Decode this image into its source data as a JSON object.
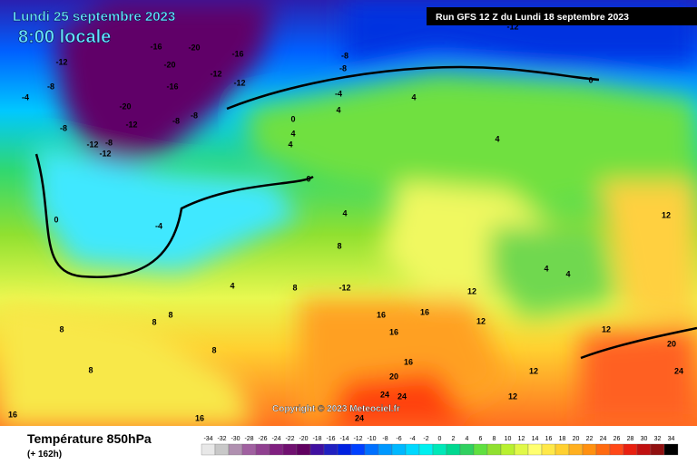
{
  "header": {
    "date": "Lundi 25 septembre 2023",
    "time": "8:00 locale",
    "run": "Run GFS 12 Z du Lundi 18 septembre 2023",
    "copyright": "Copyright © 2023 Meteociel.fr"
  },
  "legend": {
    "title": "Température 850hPa",
    "lead": "(+ 162h)",
    "ticks": [
      -34,
      -32,
      -30,
      -28,
      -26,
      -24,
      -22,
      -20,
      -18,
      -16,
      -14,
      -12,
      -10,
      -8,
      -6,
      -4,
      -2,
      0,
      2,
      4,
      6,
      8,
      10,
      12,
      14,
      16,
      18,
      20,
      22,
      24,
      26,
      28,
      30,
      32,
      34
    ],
    "colors": [
      "#e8e8e8",
      "#c8c8c8",
      "#b090b0",
      "#a060a0",
      "#904090",
      "#802080",
      "#701070",
      "#600060",
      "#4010a0",
      "#2020c0",
      "#0020e0",
      "#0040ff",
      "#0070ff",
      "#0098ff",
      "#00b8ff",
      "#00d8ff",
      "#00f0f0",
      "#00e8b8",
      "#00d890",
      "#30d060",
      "#60e040",
      "#90e030",
      "#b8f030",
      "#e0f848",
      "#ffff70",
      "#ffe848",
      "#ffd030",
      "#ffb020",
      "#ff9010",
      "#ff6a10",
      "#ff4818",
      "#e82010",
      "#c01010",
      "#901010",
      "#000000"
    ]
  },
  "contour_labels": [
    -12,
    -16,
    -20,
    -20,
    -16,
    -12,
    -16,
    -12,
    -8,
    -8,
    -4,
    -8,
    -4,
    -8,
    -20,
    -12,
    -12,
    -8,
    -12,
    -8,
    -8,
    4,
    4,
    0,
    4,
    4,
    0,
    4,
    0,
    -4,
    8,
    4,
    8,
    -12,
    8,
    8,
    8,
    8,
    8,
    16,
    16,
    16,
    12,
    12,
    16,
    20,
    24,
    24,
    24,
    16,
    16,
    12,
    12,
    12,
    12,
    20,
    24,
    -12,
    0,
    4,
    4,
    4
  ]
}
